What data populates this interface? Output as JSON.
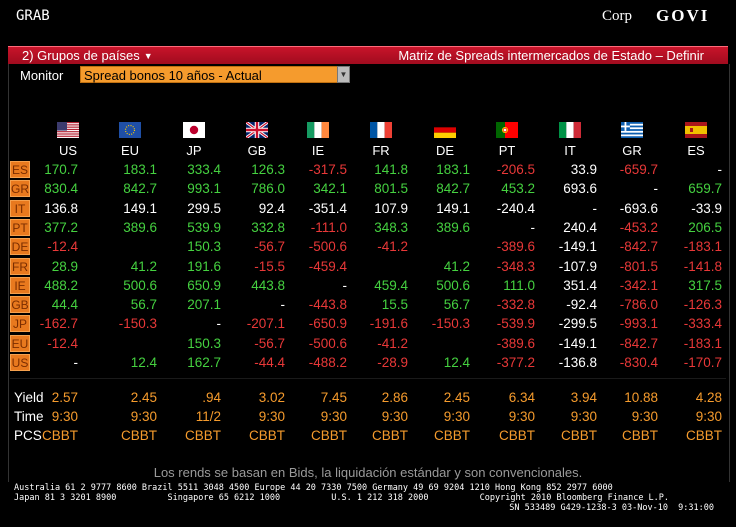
{
  "header": {
    "left": "GRAB",
    "corp": "Corp",
    "govi": "GOVI"
  },
  "redbar": {
    "menu": "2) Grupos de países",
    "title": "Matriz de Spreads intermercados de Estado – Definir"
  },
  "monitor": {
    "label": "Monitor",
    "selected": "Spread bonos 10 años - Actual"
  },
  "columns": [
    {
      "code": "US",
      "flag": "us-flag"
    },
    {
      "code": "EU",
      "flag": "eu-flag"
    },
    {
      "code": "JP",
      "flag": "jp-flag"
    },
    {
      "code": "GB",
      "flag": "gb-flag"
    },
    {
      "code": "IE",
      "flag": "ie-flag"
    },
    {
      "code": "FR",
      "flag": "fr-flag"
    },
    {
      "code": "DE",
      "flag": "de-flag"
    },
    {
      "code": "PT",
      "flag": "pt-flag"
    },
    {
      "code": "IT",
      "flag": "it-flag"
    },
    {
      "code": "GR",
      "flag": "gr-flag"
    },
    {
      "code": "ES",
      "flag": "es-flag"
    }
  ],
  "rows": [
    {
      "label": "ES",
      "cells": [
        [
          "170.7",
          "pos"
        ],
        [
          "183.1",
          "pos"
        ],
        [
          "333.4",
          "pos"
        ],
        [
          "126.3",
          "pos"
        ],
        [
          "-317.5",
          "neg"
        ],
        [
          "141.8",
          "pos"
        ],
        [
          "183.1",
          "pos"
        ],
        [
          "-206.5",
          "neg"
        ],
        [
          "33.9",
          "neu"
        ],
        [
          "-659.7",
          "neg"
        ],
        [
          "-",
          "dash"
        ]
      ]
    },
    {
      "label": "GR",
      "cells": [
        [
          "830.4",
          "pos"
        ],
        [
          "842.7",
          "pos"
        ],
        [
          "993.1",
          "pos"
        ],
        [
          "786.0",
          "pos"
        ],
        [
          "342.1",
          "pos"
        ],
        [
          "801.5",
          "pos"
        ],
        [
          "842.7",
          "pos"
        ],
        [
          "453.2",
          "pos"
        ],
        [
          "693.6",
          "neu"
        ],
        [
          "-",
          "dash"
        ],
        [
          "659.7",
          "pos"
        ]
      ]
    },
    {
      "label": "IT",
      "cells": [
        [
          "136.8",
          "neu"
        ],
        [
          "149.1",
          "neu"
        ],
        [
          "299.5",
          "neu"
        ],
        [
          "92.4",
          "neu"
        ],
        [
          "-351.4",
          "neu"
        ],
        [
          "107.9",
          "neu"
        ],
        [
          "149.1",
          "neu"
        ],
        [
          "-240.4",
          "neu"
        ],
        [
          "-",
          "dash"
        ],
        [
          "-693.6",
          "neu"
        ],
        [
          "-33.9",
          "neu"
        ]
      ]
    },
    {
      "label": "PT",
      "cells": [
        [
          "377.2",
          "pos"
        ],
        [
          "389.6",
          "pos"
        ],
        [
          "539.9",
          "pos"
        ],
        [
          "332.8",
          "pos"
        ],
        [
          "-111.0",
          "neg"
        ],
        [
          "348.3",
          "pos"
        ],
        [
          "389.6",
          "pos"
        ],
        [
          "-",
          "dash"
        ],
        [
          "240.4",
          "neu"
        ],
        [
          "-453.2",
          "neg"
        ],
        [
          "206.5",
          "pos"
        ]
      ]
    },
    {
      "label": "DE",
      "cells": [
        [
          "-12.4",
          "neg"
        ],
        [
          "",
          "dash"
        ],
        [
          "150.3",
          "pos"
        ],
        [
          "-56.7",
          "neg"
        ],
        [
          "-500.6",
          "neg"
        ],
        [
          "-41.2",
          "neg"
        ],
        [
          "",
          "dash"
        ],
        [
          "-389.6",
          "neg"
        ],
        [
          "-149.1",
          "neu"
        ],
        [
          "-842.7",
          "neg"
        ],
        [
          "-183.1",
          "neg"
        ]
      ]
    },
    {
      "label": "FR",
      "cells": [
        [
          "28.9",
          "pos"
        ],
        [
          "41.2",
          "pos"
        ],
        [
          "191.6",
          "pos"
        ],
        [
          "-15.5",
          "neg"
        ],
        [
          "-459.4",
          "neg"
        ],
        [
          "",
          "dash"
        ],
        [
          "41.2",
          "pos"
        ],
        [
          "-348.3",
          "neg"
        ],
        [
          "-107.9",
          "neu"
        ],
        [
          "-801.5",
          "neg"
        ],
        [
          "-141.8",
          "neg"
        ]
      ]
    },
    {
      "label": "IE",
      "cells": [
        [
          "488.2",
          "pos"
        ],
        [
          "500.6",
          "pos"
        ],
        [
          "650.9",
          "pos"
        ],
        [
          "443.8",
          "pos"
        ],
        [
          "-",
          "dash"
        ],
        [
          "459.4",
          "pos"
        ],
        [
          "500.6",
          "pos"
        ],
        [
          "111.0",
          "pos"
        ],
        [
          "351.4",
          "neu"
        ],
        [
          "-342.1",
          "neg"
        ],
        [
          "317.5",
          "pos"
        ]
      ]
    },
    {
      "label": "GB",
      "cells": [
        [
          "44.4",
          "pos"
        ],
        [
          "56.7",
          "pos"
        ],
        [
          "207.1",
          "pos"
        ],
        [
          "-",
          "dash"
        ],
        [
          "-443.8",
          "neg"
        ],
        [
          "15.5",
          "pos"
        ],
        [
          "56.7",
          "pos"
        ],
        [
          "-332.8",
          "neg"
        ],
        [
          "-92.4",
          "neu"
        ],
        [
          "-786.0",
          "neg"
        ],
        [
          "-126.3",
          "neg"
        ]
      ]
    },
    {
      "label": "JP",
      "cells": [
        [
          "-162.7",
          "neg"
        ],
        [
          "-150.3",
          "neg"
        ],
        [
          "-",
          "dash"
        ],
        [
          "-207.1",
          "neg"
        ],
        [
          "-650.9",
          "neg"
        ],
        [
          "-191.6",
          "neg"
        ],
        [
          "-150.3",
          "neg"
        ],
        [
          "-539.9",
          "neg"
        ],
        [
          "-299.5",
          "neu"
        ],
        [
          "-993.1",
          "neg"
        ],
        [
          "-333.4",
          "neg"
        ]
      ]
    },
    {
      "label": "EU",
      "cells": [
        [
          "-12.4",
          "neg"
        ],
        [
          "",
          "dash"
        ],
        [
          "150.3",
          "pos"
        ],
        [
          "-56.7",
          "neg"
        ],
        [
          "-500.6",
          "neg"
        ],
        [
          "-41.2",
          "neg"
        ],
        [
          "",
          "dash"
        ],
        [
          "-389.6",
          "neg"
        ],
        [
          "-149.1",
          "neu"
        ],
        [
          "-842.7",
          "neg"
        ],
        [
          "-183.1",
          "neg"
        ]
      ]
    },
    {
      "label": "US",
      "cells": [
        [
          "-",
          "dash"
        ],
        [
          "12.4",
          "pos"
        ],
        [
          "162.7",
          "pos"
        ],
        [
          "-44.4",
          "neg"
        ],
        [
          "-488.2",
          "neg"
        ],
        [
          "-28.9",
          "neg"
        ],
        [
          "12.4",
          "pos"
        ],
        [
          "-377.2",
          "neg"
        ],
        [
          "-136.8",
          "neu"
        ],
        [
          "-830.4",
          "neg"
        ],
        [
          "-170.7",
          "neg"
        ]
      ]
    }
  ],
  "footer_rows": [
    {
      "label": "Yield",
      "cells": [
        "2.57",
        "2.45",
        ".94",
        "3.02",
        "7.45",
        "2.86",
        "2.45",
        "6.34",
        "3.94",
        "10.88",
        "4.28"
      ]
    },
    {
      "label": "Time",
      "cells": [
        "9:30",
        "9:30",
        "11/2",
        "9:30",
        "9:30",
        "9:30",
        "9:30",
        "9:30",
        "9:30",
        "9:30",
        "9:30"
      ]
    },
    {
      "label": "PCS",
      "cells": [
        "CBBT",
        "CBBT",
        "CBBT",
        "CBBT",
        "CBBT",
        "CBBT",
        "CBBT",
        "CBBT",
        "CBBT",
        "CBBT",
        "CBBT"
      ]
    }
  ],
  "footnote": "Los rends se basan en Bids, la liquidación estándar y son convencionales.",
  "contacts": {
    "line1": "Australia 61 2 9777 8600 Brazil 5511 3048 4500 Europe 44 20 7330 7500 Germany 49 69 9204 1210 Hong Kong 852 2977 6000",
    "line2": "Japan 81 3 3201 8900          Singapore 65 6212 1000          U.S. 1 212 318 2000          Copyright 2010 Bloomberg Finance L.P.",
    "line3": "SN 533489 G429-1238-3 03-Nov-10  9:31:00"
  },
  "colors": {
    "positive": "#45d140",
    "negative": "#e83838",
    "neutral": "#ffffff",
    "accent": "#f59b2d",
    "redbar": "#c8142a"
  }
}
